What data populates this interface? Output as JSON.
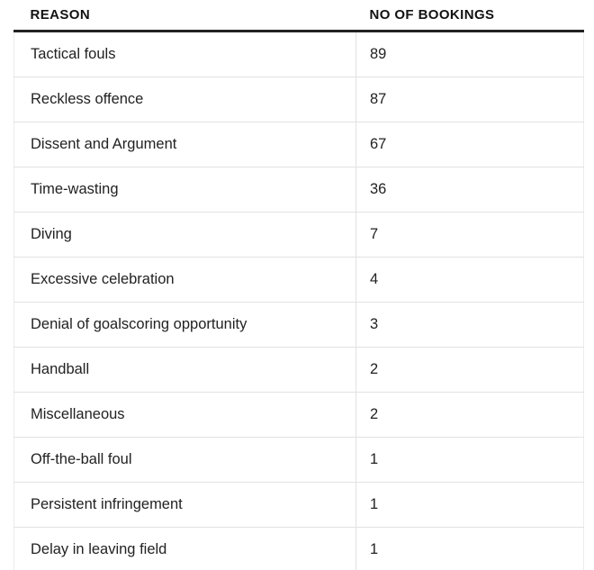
{
  "colors": {
    "background": "#ffffff",
    "header_text": "#121212",
    "body_text": "#222222",
    "header_rule": "#222222",
    "grid_line": "#e2e2e2",
    "outer_border": "#ececec"
  },
  "table": {
    "columns": [
      "REASON",
      "NO OF BOOKINGS"
    ],
    "rows": [
      {
        "reason": "Tactical fouls",
        "bookings": "89"
      },
      {
        "reason": "Reckless offence",
        "bookings": "87"
      },
      {
        "reason": "Dissent and Argument",
        "bookings": "67"
      },
      {
        "reason": "Time-wasting",
        "bookings": "36"
      },
      {
        "reason": "Diving",
        "bookings": "7"
      },
      {
        "reason": "Excessive celebration",
        "bookings": "4"
      },
      {
        "reason": "Denial of goalscoring opportunity",
        "bookings": "3"
      },
      {
        "reason": "Handball",
        "bookings": "2"
      },
      {
        "reason": "Miscellaneous",
        "bookings": "2"
      },
      {
        "reason": "Off-the-ball foul",
        "bookings": "1"
      },
      {
        "reason": "Persistent infringement",
        "bookings": "1"
      },
      {
        "reason": "Delay in leaving field",
        "bookings": "1"
      }
    ]
  },
  "chart_data": {
    "type": "table",
    "title": "",
    "columns": [
      "REASON",
      "NO OF BOOKINGS"
    ],
    "categories": [
      "Tactical fouls",
      "Reckless offence",
      "Dissent and Argument",
      "Time-wasting",
      "Diving",
      "Excessive celebration",
      "Denial of goalscoring opportunity",
      "Handball",
      "Miscellaneous",
      "Off-the-ball foul",
      "Persistent infringement",
      "Delay in leaving field"
    ],
    "values": [
      89,
      87,
      67,
      36,
      7,
      4,
      3,
      2,
      2,
      1,
      1,
      1
    ]
  }
}
